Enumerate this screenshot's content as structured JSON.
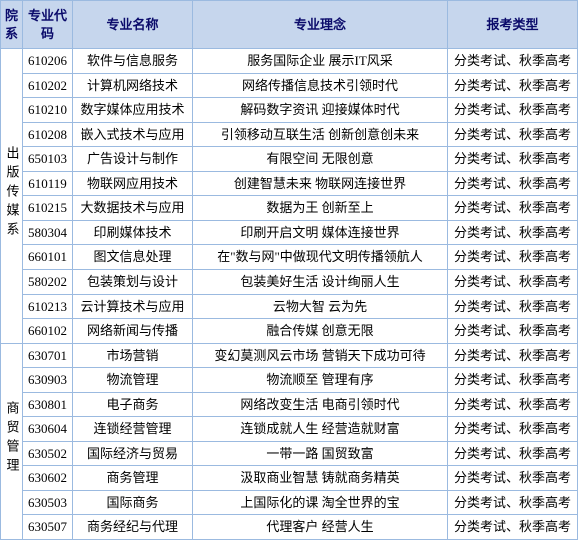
{
  "headers": {
    "dept": "院系",
    "code": "专业代码",
    "name": "专业名称",
    "concept": "专业理念",
    "type": "报考类型"
  },
  "depts": [
    {
      "label": "出版传媒系",
      "rows": [
        {
          "code": "610206",
          "name": "软件与信息服务",
          "concept": "服务国际企业 展示IT风采",
          "type": "分类考试、秋季高考"
        },
        {
          "code": "610202",
          "name": "计算机网络技术",
          "concept": "网络传播信息技术引领时代",
          "type": "分类考试、秋季高考"
        },
        {
          "code": "610210",
          "name": "数字媒体应用技术",
          "concept": "解码数字资讯 迎接媒体时代",
          "type": "分类考试、秋季高考"
        },
        {
          "code": "610208",
          "name": "嵌入式技术与应用",
          "concept": "引领移动互联生活 创新创意创未来",
          "type": "分类考试、秋季高考"
        },
        {
          "code": "650103",
          "name": "广告设计与制作",
          "concept": "有限空间 无限创意",
          "type": "分类考试、秋季高考"
        },
        {
          "code": "610119",
          "name": "物联网应用技术",
          "concept": "创建智慧未来 物联网连接世界",
          "type": "分类考试、秋季高考"
        },
        {
          "code": "610215",
          "name": "大数据技术与应用",
          "concept": "数据为王 创新至上",
          "type": "分类考试、秋季高考"
        },
        {
          "code": "580304",
          "name": "印刷媒体技术",
          "concept": "印刷开启文明 媒体连接世界",
          "type": "分类考试、秋季高考"
        },
        {
          "code": "660101",
          "name": "图文信息处理",
          "concept": "在\"数与网\"中做现代文明传播领航人",
          "type": "分类考试、秋季高考"
        },
        {
          "code": "580202",
          "name": "包装策划与设计",
          "concept": "包装美好生活 设计绚丽人生",
          "type": "分类考试、秋季高考"
        },
        {
          "code": "610213",
          "name": "云计算技术与应用",
          "concept": "云物大智 云为先",
          "type": "分类考试、秋季高考"
        },
        {
          "code": "660102",
          "name": "网络新闻与传播",
          "concept": "融合传媒 创意无限",
          "type": "分类考试、秋季高考"
        }
      ]
    },
    {
      "label": "商贸管理",
      "rows": [
        {
          "code": "630701",
          "name": "市场营销",
          "concept": "变幻莫测风云市场 营销天下成功可待",
          "type": "分类考试、秋季高考"
        },
        {
          "code": "630903",
          "name": "物流管理",
          "concept": "物流顺至 管理有序",
          "type": "分类考试、秋季高考"
        },
        {
          "code": "630801",
          "name": "电子商务",
          "concept": "网络改变生活 电商引领时代",
          "type": "分类考试、秋季高考"
        },
        {
          "code": "630604",
          "name": "连锁经营管理",
          "concept": "连锁成就人生 经营造就财富",
          "type": "分类考试、秋季高考"
        },
        {
          "code": "630502",
          "name": "国际经济与贸易",
          "concept": "一带一路 国贸致富",
          "type": "分类考试、秋季高考"
        },
        {
          "code": "630602",
          "name": "商务管理",
          "concept": "汲取商业智慧 铸就商务精英",
          "type": "分类考试、秋季高考"
        },
        {
          "code": "630503",
          "name": "国际商务",
          "concept": "上国际化的课 淘全世界的宝",
          "type": "分类考试、秋季高考"
        },
        {
          "code": "630507",
          "name": "商务经纪与代理",
          "concept": "代理客户 经营人生",
          "type": "分类考试、秋季高考"
        }
      ]
    }
  ]
}
